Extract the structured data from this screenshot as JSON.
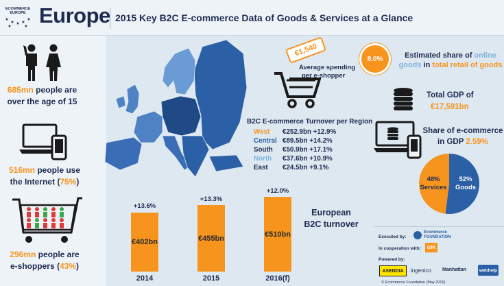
{
  "header": {
    "logo_text_1": "ECOMMERCE",
    "logo_text_2": "EUROPE",
    "region_title": "Europe",
    "subtitle": "2015 Key B2C E-commerce Data of Goods & Services at a Glance"
  },
  "left_stats": {
    "age": {
      "num": "685mn",
      "text1": " people are",
      "text2": "over the age of 15"
    },
    "internet": {
      "num": "516mn",
      "text1": " people use",
      "text2a": "the Internet (",
      "pct": "75%",
      "text2b": ")"
    },
    "shoppers": {
      "num": "296mn",
      "text1": " people are",
      "text2a": "e-shoppers (",
      "pct": "43%",
      "text2b": ")"
    }
  },
  "spending": {
    "tag_value": "€1,540",
    "label_1": "Average spending",
    "label_2": "per e-shopper"
  },
  "online_share": {
    "circle_value": "8.0%",
    "line1_a": "Estimated share of ",
    "line1_b": "online",
    "line2_a": "goods",
    "line2_b": " in ",
    "line2_c": "total retail of goods"
  },
  "gdp": {
    "label": "Total GDP of",
    "value": "€17,591bn"
  },
  "ecommerce_gdp": {
    "line1": "Share of e-commerce",
    "line2_a": "in GDP ",
    "line2_b": "2.59%"
  },
  "pie": {
    "services_pct": 48,
    "goods_pct": 52,
    "services_label_pct": "48%",
    "services_label": "Services",
    "goods_label_pct": "52%",
    "goods_label": "Goods",
    "colors": {
      "services": "#f7941d",
      "goods": "#2b5fa6"
    }
  },
  "regions": {
    "title": "B2C E-commerce Turnover per Region",
    "rows": [
      {
        "name": "West",
        "value": "€252.9bn",
        "growth": "+12.9%",
        "color": "#f7941d"
      },
      {
        "name": "Central",
        "value": "€89.5bn",
        "growth": "+14.2%",
        "color": "#2b5fa6"
      },
      {
        "name": "South",
        "value": "€50.9bn",
        "growth": "+17.1%",
        "color": "#1d2b4f"
      },
      {
        "name": "North",
        "value": "€37.6bn",
        "growth": "+10.9%",
        "color": "#7fb4de"
      },
      {
        "name": "East",
        "value": "€24.5bn",
        "growth": "+9.1%",
        "color": "#1d2b4f"
      }
    ]
  },
  "turnover": {
    "title_1": "European",
    "title_2": "B2C turnover",
    "bars": [
      {
        "year": "2014",
        "value": 402,
        "label": "€402bn",
        "growth": "+13.6%"
      },
      {
        "year": "2015",
        "value": 455,
        "label": "€455bn",
        "growth": "+13.3%"
      },
      {
        "year": "2016(f)",
        "value": 510,
        "label": "€510bn",
        "growth": "+12.0%"
      }
    ],
    "bar_color": "#f7941d"
  },
  "footer": {
    "executed_by": "Executed by:",
    "executor": "Ecommerce FOUNDATION",
    "cooperation": "In cooperation with:",
    "coop_partner": "GfK",
    "powered_by": "Powered by:",
    "sponsors": [
      "ASENDIA",
      "ingenico",
      "Manhattan",
      "webhelp"
    ],
    "copyright": "© Ecommerce Foundation (May 2016)"
  },
  "map_colors": {
    "east": "#2b5fa6",
    "west": "#4f82c4",
    "central": "#1f4a86",
    "south": "#3a6db5",
    "north": "#6a9bd4",
    "borders": "#dde8f1"
  }
}
